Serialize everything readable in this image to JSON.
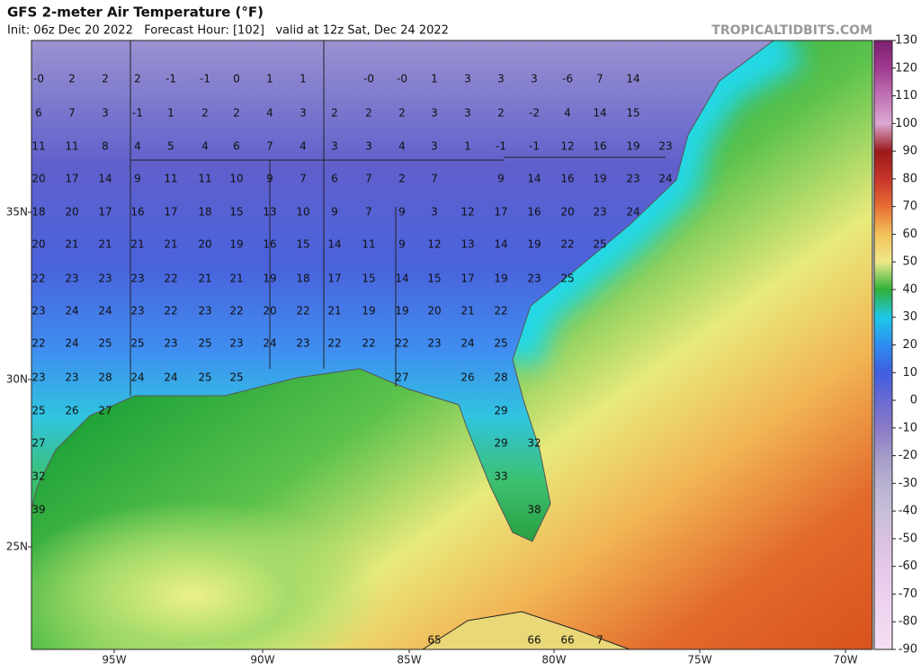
{
  "header": {
    "title": "GFS 2-meter Air Temperature (°F)",
    "subtitle": "Init: 06z Dec 20 2022   Forecast Hour: [102]   valid at 12z Sat, Dec 24 2022",
    "watermark": "TROPICALTIDBITS.COM"
  },
  "latitude_labels": [
    "35N",
    "30N",
    "25N"
  ],
  "longitude_labels": [
    "95W",
    "90W",
    "85W",
    "80W",
    "75W",
    "70W"
  ],
  "colorbar": {
    "labels": [
      "130",
      "120",
      "110",
      "100",
      "90",
      "80",
      "70",
      "60",
      "50",
      "40",
      "30",
      "20",
      "10",
      "0",
      "-10",
      "-20",
      "-30",
      "-40",
      "-50",
      "-60",
      "-70",
      "-80",
      "-90"
    ],
    "colors": [
      "#7d1f6e",
      "#a03a90",
      "#c072b4",
      "#dba8d2",
      "#9a1a1a",
      "#c8342a",
      "#e66e34",
      "#f3c25a",
      "#efe98a",
      "#2fb03a",
      "#1ec8e8",
      "#2f8cf0",
      "#3f5ee0",
      "#6a6ad0",
      "#8a7ac8",
      "#a49ac8",
      "#b8b0d0",
      "#c6bed8",
      "#d8c0e0",
      "#e4c8e8",
      "#ecd0ee",
      "#f0d8f0",
      "#f4e0f4"
    ]
  },
  "map_labels": [
    [
      "-0",
      "2",
      "2",
      "2",
      "-1",
      "-1",
      "0",
      "1",
      "1",
      "-0",
      "-0",
      "1",
      "3",
      "3",
      "3",
      "-6",
      "7",
      "14"
    ],
    [
      "6",
      "7",
      "3",
      "-1",
      "1",
      "2",
      "2",
      "4",
      "3",
      "2",
      "2",
      "2",
      "3",
      "3",
      "2",
      "-2",
      "4",
      "14",
      "15"
    ],
    [
      "11",
      "11",
      "8",
      "4",
      "5",
      "4",
      "6",
      "7",
      "4",
      "3",
      "3",
      "4",
      "3",
      "1",
      "-1",
      "-1",
      "12",
      "16",
      "19",
      "23"
    ],
    [
      "20",
      "17",
      "14",
      "9",
      "11",
      "11",
      "10",
      "9",
      "7",
      "6",
      "7",
      "2",
      "7",
      "9",
      "14",
      "16",
      "19",
      "23",
      "24"
    ],
    [
      "18",
      "20",
      "17",
      "16",
      "17",
      "18",
      "15",
      "13",
      "10",
      "9",
      "7",
      "9",
      "3",
      "12",
      "17",
      "16",
      "20",
      "23",
      "24"
    ],
    [
      "20",
      "21",
      "21",
      "21",
      "21",
      "20",
      "19",
      "16",
      "15",
      "14",
      "11",
      "9",
      "12",
      "13",
      "14",
      "19",
      "22",
      "25"
    ],
    [
      "22",
      "23",
      "23",
      "23",
      "22",
      "21",
      "21",
      "19",
      "18",
      "17",
      "15",
      "14",
      "15",
      "17",
      "19",
      "23",
      "25"
    ],
    [
      "23",
      "24",
      "24",
      "23",
      "22",
      "23",
      "22",
      "20",
      "22",
      "21",
      "19",
      "19",
      "20",
      "21",
      "22"
    ],
    [
      "22",
      "24",
      "25",
      "25",
      "23",
      "25",
      "23",
      "24",
      "23",
      "22",
      "22",
      "22",
      "23",
      "24",
      "25"
    ],
    [
      "23",
      "23",
      "28",
      "24",
      "24",
      "25",
      "25",
      "27",
      "26",
      "28"
    ],
    [
      "25",
      "26",
      "27",
      "29"
    ],
    [
      "27",
      "29",
      "32"
    ],
    [
      "32",
      "33"
    ],
    [
      "39",
      "38"
    ],
    [
      "65",
      "66",
      "66",
      "7"
    ]
  ]
}
